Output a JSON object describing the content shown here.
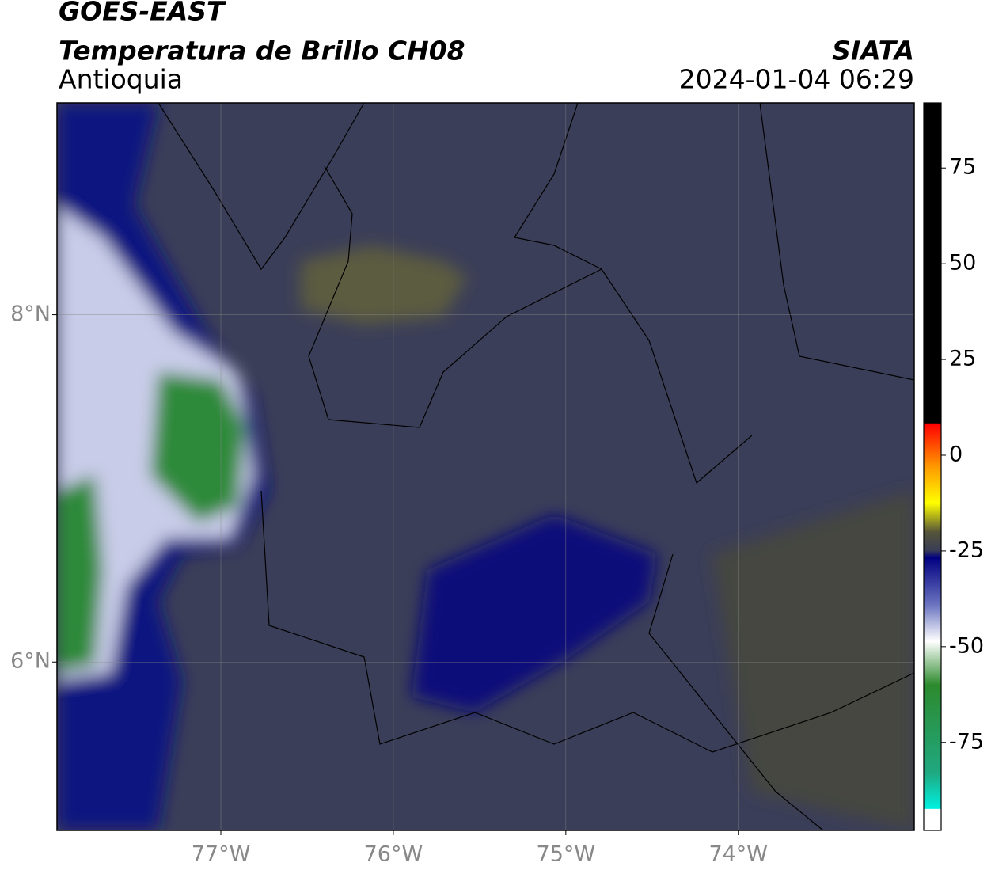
{
  "header": {
    "title": "GOES-EAST",
    "subtitle": "Temperatura de Brillo CH08",
    "region": "Antioquia",
    "source": "SIATA",
    "timestamp": "2024-01-04 06:29"
  },
  "map": {
    "xlim": [
      -77.95,
      -72.98
    ],
    "ylim": [
      5.03,
      9.22
    ],
    "xticks": [
      {
        "value": -77,
        "label": "77°W"
      },
      {
        "value": -76,
        "label": "76°W"
      },
      {
        "value": -75,
        "label": "75°W"
      },
      {
        "value": -74,
        "label": "74°W"
      }
    ],
    "yticks": [
      {
        "value": 8,
        "label": "8°N"
      },
      {
        "value": 6,
        "label": "6°N"
      }
    ]
  },
  "colorbar": {
    "lim": [
      -98,
      92
    ],
    "ticks": [
      75,
      50,
      25,
      0,
      -25,
      -50,
      -75
    ]
  }
}
